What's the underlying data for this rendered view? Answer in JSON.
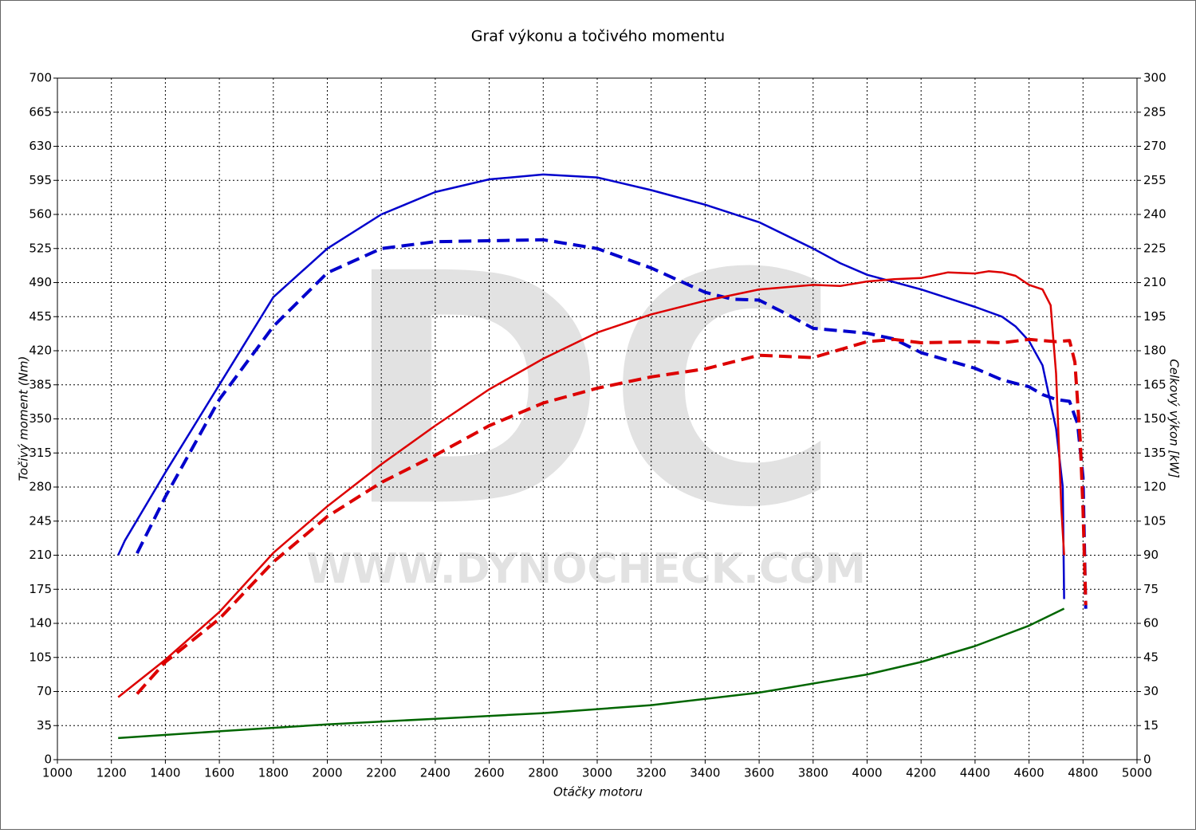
{
  "chart_data": {
    "type": "line",
    "title": "Graf výkonu a točivého momentu",
    "x_label": "Otáčky motoru",
    "y_label": "Točivý moment (Nm)",
    "y2_label": "Celkový výkon [kW]",
    "watermark_logo": "DC",
    "watermark_text": "WWW.DYNOCHECK.COM",
    "xlim": [
      1000,
      5000
    ],
    "xticks": [
      1000,
      1200,
      1400,
      1600,
      1800,
      2000,
      2200,
      2400,
      2600,
      2800,
      3000,
      3200,
      3400,
      3600,
      3800,
      4000,
      4200,
      4400,
      4600,
      4800,
      5000
    ],
    "ylim": [
      0,
      700
    ],
    "yticks": [
      0,
      35,
      70,
      105,
      140,
      175,
      210,
      245,
      280,
      315,
      350,
      385,
      420,
      455,
      490,
      525,
      560,
      595,
      630,
      665,
      700
    ],
    "y2lim": [
      0,
      300
    ],
    "y2ticks": [
      0,
      15,
      30,
      45,
      60,
      75,
      90,
      105,
      120,
      135,
      150,
      165,
      180,
      195,
      210,
      225,
      240,
      255,
      270,
      285,
      300
    ],
    "grid": true,
    "series": [
      {
        "color": "#0000cc",
        "dashed": false,
        "axis": "y",
        "x": [
          1225,
          1250,
          1400,
          1600,
          1800,
          2000,
          2200,
          2400,
          2600,
          2800,
          3000,
          3200,
          3400,
          3600,
          3800,
          3900,
          4000,
          4200,
          4400,
          4500,
          4550,
          4600,
          4650,
          4700,
          4725,
          4730
        ],
        "values": [
          210,
          225,
          295,
          385,
          475,
          525,
          560,
          583,
          596,
          601,
          598,
          585,
          570,
          552,
          525,
          510,
          498,
          483,
          465,
          455,
          445,
          430,
          405,
          340,
          280,
          165
        ]
      },
      {
        "color": "#0000cc",
        "dashed": true,
        "axis": "y",
        "x": [
          1295,
          1400,
          1600,
          1800,
          2000,
          2200,
          2400,
          2600,
          2800,
          3000,
          3200,
          3400,
          3500,
          3600,
          3700,
          3800,
          4000,
          4100,
          4200,
          4400,
          4500,
          4600,
          4650,
          4700,
          4750,
          4780,
          4800,
          4810
        ],
        "values": [
          212,
          270,
          370,
          445,
          500,
          525,
          532,
          533,
          534,
          525,
          505,
          480,
          473,
          472,
          458,
          443,
          438,
          432,
          418,
          402,
          390,
          383,
          375,
          370,
          368,
          345,
          290,
          155
        ]
      },
      {
        "color": "#dd0000",
        "dashed": false,
        "axis": "y2",
        "x": [
          1225,
          1400,
          1600,
          1800,
          2000,
          2200,
          2400,
          2600,
          2800,
          3000,
          3200,
          3400,
          3600,
          3800,
          3900,
          4000,
          4100,
          4200,
          4300,
          4400,
          4450,
          4500,
          4550,
          4600,
          4650,
          4680,
          4700,
          4720,
          4730
        ],
        "values": [
          27.5,
          44,
          65,
          91,
          111.5,
          130,
          147,
          163,
          176.5,
          188,
          196,
          202,
          207,
          209,
          208.5,
          210.5,
          211.5,
          212,
          214.5,
          214,
          215,
          214.5,
          213,
          209,
          207,
          200,
          170,
          110,
          90
        ]
      },
      {
        "color": "#dd0000",
        "dashed": true,
        "axis": "y2",
        "x": [
          1295,
          1400,
          1600,
          1800,
          2000,
          2200,
          2400,
          2600,
          2800,
          3000,
          3200,
          3400,
          3500,
          3600,
          3800,
          4000,
          4100,
          4200,
          4400,
          4500,
          4600,
          4700,
          4750,
          4770,
          4790,
          4800,
          4810
        ],
        "values": [
          29,
          43,
          62,
          87,
          107,
          122,
          134,
          147,
          157,
          163.5,
          168.5,
          172,
          175,
          178,
          177,
          184,
          185,
          183.5,
          184,
          183.5,
          185,
          184,
          184.5,
          175,
          140,
          110,
          68
        ]
      },
      {
        "color": "#006600",
        "dashed": false,
        "axis": "y2",
        "x": [
          1225,
          1600,
          2000,
          2400,
          2800,
          3200,
          3600,
          4000,
          4200,
          4400,
          4600,
          4730
        ],
        "values": [
          9.5,
          12.5,
          15.5,
          18,
          20.5,
          24,
          29.5,
          37.5,
          43,
          50,
          59,
          66.5
        ]
      }
    ]
  }
}
